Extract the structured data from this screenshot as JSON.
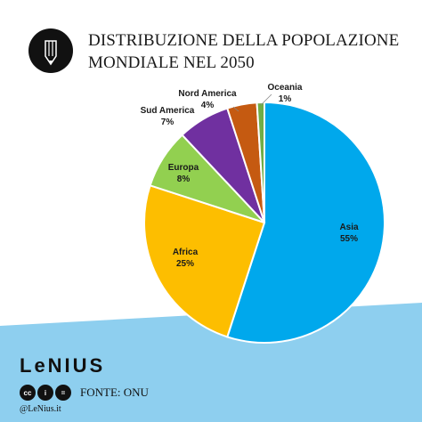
{
  "title": {
    "line1": "DISTRIBUZIONE DELLA POPOLAZIONE",
    "line2": "MONDIALE NEL 2050"
  },
  "logo_icon": "pencil-icon",
  "chart_data": {
    "type": "pie",
    "title": "DISTRIBUZIONE DELLA POPOLAZIONE MONDIALE NEL 2050",
    "slices": [
      {
        "name": "Asia",
        "value": 55,
        "label": "55%",
        "color": "#00A8EC"
      },
      {
        "name": "Africa",
        "value": 25,
        "label": "25%",
        "color": "#FDBE00"
      },
      {
        "name": "Europa",
        "value": 8,
        "label": "8%",
        "color": "#92D050"
      },
      {
        "name": "Sud America",
        "value": 7,
        "label": "7%",
        "color": "#7030A0"
      },
      {
        "name": "Nord America",
        "value": 4,
        "label": "4%",
        "color": "#C55A11"
      },
      {
        "name": "Oceania",
        "value": 1,
        "label": "1%",
        "color": "#70AD47"
      }
    ],
    "start_at": "top",
    "direction": "clockwise",
    "legend": "none"
  },
  "footer": {
    "brand": "LeNIUS",
    "source": "FONTE: ONU",
    "handle": "@LeNius.it",
    "license_icons": [
      "cc-icon",
      "by-icon",
      "nd-icon"
    ],
    "band_color": "#8ECFEF"
  }
}
